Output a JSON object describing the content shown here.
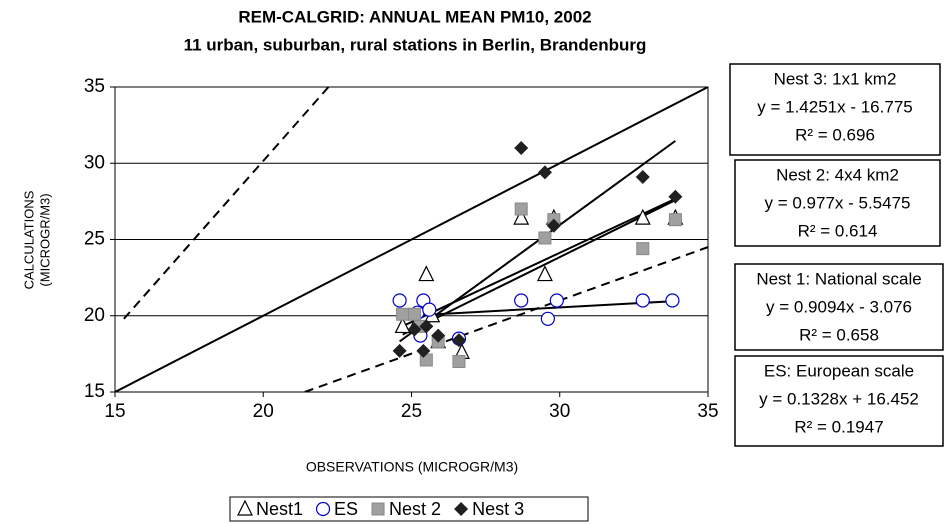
{
  "chart_data": {
    "type": "scatter",
    "title": "REM-CALGRID: ANNUAL MEAN PM10, 2002",
    "subtitle": "11 urban, suburban, rural stations in Berlin, Brandenburg",
    "x_label": "OBSERVATIONS (MICROGR/M3)",
    "y_label": "CALCULATIONS",
    "y_label_unit": "(MICROGR/M3)",
    "xlim": [
      15,
      35
    ],
    "ylim": [
      15,
      35
    ],
    "xticks": [
      15,
      20,
      25,
      30,
      35
    ],
    "yticks": [
      15,
      20,
      25,
      30,
      35
    ],
    "grid": true,
    "legend": "bottom",
    "series": [
      {
        "name": "Nest1",
        "marker": "triangle",
        "color": "#000000",
        "x": [
          24.7,
          25.5,
          25.9,
          26.7,
          28.7,
          29.5,
          29.8,
          32.8,
          33.9,
          25.2,
          25.7
        ],
        "values": [
          19.3,
          22.7,
          18.3,
          17.6,
          26.4,
          22.7,
          26.4,
          26.4,
          26.4,
          19.6,
          20.0
        ]
      },
      {
        "name": "ES",
        "marker": "circle",
        "color": "#0000cc",
        "x": [
          24.6,
          25.4,
          25.2,
          25.6,
          26.6,
          28.7,
          29.6,
          29.9,
          32.8,
          33.8,
          25.3
        ],
        "values": [
          21.0,
          21.0,
          20.2,
          20.4,
          18.5,
          21.0,
          19.8,
          21.0,
          21.0,
          21.0,
          18.7
        ]
      },
      {
        "name": "Nest 2",
        "marker": "square",
        "color": "#a0a0a0",
        "x": [
          24.7,
          25.1,
          25.5,
          25.9,
          26.6,
          28.7,
          29.5,
          29.8,
          32.8,
          33.9,
          25.3
        ],
        "values": [
          20.1,
          20.1,
          17.1,
          18.3,
          17.0,
          27.0,
          25.1,
          26.3,
          24.4,
          26.3,
          19.3
        ]
      },
      {
        "name": "Nest 3",
        "marker": "diamond",
        "color": "#202020",
        "x": [
          24.6,
          25.1,
          25.4,
          25.9,
          26.6,
          28.7,
          29.5,
          29.8,
          32.8,
          33.9,
          25.5
        ],
        "values": [
          17.7,
          19.1,
          17.7,
          18.7,
          18.4,
          31.0,
          29.4,
          25.9,
          29.1,
          27.8,
          19.3
        ]
      }
    ],
    "reference_lines": [
      {
        "style": "solid",
        "points": [
          [
            15,
            15
          ],
          [
            35,
            35
          ]
        ]
      },
      {
        "style": "dashed",
        "points": [
          [
            15.3,
            19.8
          ],
          [
            22.2,
            35
          ]
        ]
      },
      {
        "style": "dashed",
        "points": [
          [
            21.4,
            15
          ],
          [
            35,
            24.5
          ]
        ]
      }
    ],
    "annotations": [
      [
        "Nest 3: 1x1 km2",
        "y = 1.4251x - 16.775",
        "R² = 0.696"
      ],
      [
        "Nest 2: 4x4 km2",
        "y = 0.977x - 5.5475",
        "R² = 0.614"
      ],
      [
        "Nest 1: National scale",
        "y = 0.9094x - 3.076",
        "R² = 0.658"
      ],
      [
        "ES: European scale",
        "y = 0.1328x + 16.452",
        "R² = 0.1947"
      ]
    ]
  }
}
